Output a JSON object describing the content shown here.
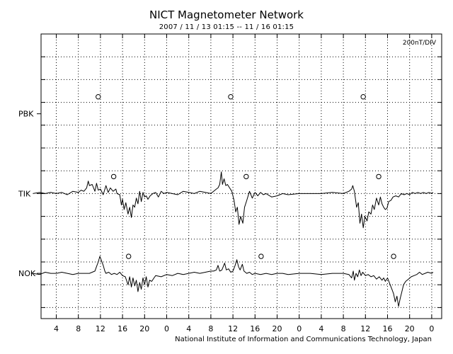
{
  "header": {
    "title": "NICT Magnetometer Network",
    "subtitle": "2007 / 11 / 13   01:15 -- 11 / 16   01:15"
  },
  "footer": {
    "credit": "National Institute of Information and Communications Technology, Japan"
  },
  "chart_data": {
    "type": "line",
    "title": "NICT Magnetometer Network",
    "subtitle": "2007 / 11 / 13   01:15 -- 11 / 16   01:15",
    "scale_label": "200nT/DIV",
    "x_tick_labels": [
      "4",
      "8",
      "12",
      "16",
      "20",
      "0",
      "4",
      "8",
      "12",
      "16",
      "20",
      "0",
      "4",
      "8",
      "12",
      "16",
      "20",
      "0"
    ],
    "grid": true,
    "colors": {
      "line": "#000000",
      "grid": "#000000",
      "background": "#ffffff"
    },
    "series": [
      {
        "name": "PBK",
        "level_div": 3.5,
        "markers_hours_ut": [
          11.6,
          35.6,
          59.6
        ],
        "points": []
      },
      {
        "name": "TIK",
        "level_div": 7,
        "markers_hours_ut": [
          14.4,
          38.4,
          62.4
        ],
        "points": [
          [
            -0.25,
            0.0
          ],
          [
            1,
            0.05
          ],
          [
            2,
            0.0
          ],
          [
            3,
            0.05
          ],
          [
            4,
            0.0
          ],
          [
            5,
            0.05
          ],
          [
            6,
            -0.05
          ],
          [
            7,
            0.1
          ],
          [
            8,
            0.05
          ],
          [
            8.5,
            0.15
          ],
          [
            9,
            0.1
          ],
          [
            9.5,
            0.25
          ],
          [
            9.8,
            0.55
          ],
          [
            10,
            0.35
          ],
          [
            10.5,
            0.4
          ],
          [
            11,
            0.1
          ],
          [
            11.3,
            0.45
          ],
          [
            11.6,
            0.15
          ],
          [
            12,
            0.2
          ],
          [
            12.5,
            -0.05
          ],
          [
            13,
            0.35
          ],
          [
            13.4,
            0.05
          ],
          [
            13.8,
            0.25
          ],
          [
            14.3,
            0.1
          ],
          [
            14.8,
            0.2
          ],
          [
            15,
            0.0
          ],
          [
            15.5,
            -0.05
          ],
          [
            15.8,
            -0.5
          ],
          [
            16,
            -0.25
          ],
          [
            16.3,
            -0.7
          ],
          [
            16.6,
            -0.4
          ],
          [
            17,
            -0.9
          ],
          [
            17.3,
            -0.6
          ],
          [
            17.6,
            -1.05
          ],
          [
            17.9,
            -0.5
          ],
          [
            18.2,
            -0.6
          ],
          [
            18.5,
            -0.2
          ],
          [
            18.8,
            -0.45
          ],
          [
            19.1,
            0.1
          ],
          [
            19.4,
            -0.35
          ],
          [
            19.7,
            0.05
          ],
          [
            20,
            -0.15
          ],
          [
            20.3,
            -0.1
          ],
          [
            20.6,
            -0.25
          ],
          [
            21,
            -0.1
          ],
          [
            21.5,
            0.0
          ],
          [
            22,
            0.05
          ],
          [
            22.5,
            -0.15
          ],
          [
            23,
            0.1
          ],
          [
            23.5,
            0.0
          ],
          [
            24,
            0.05
          ],
          [
            25,
            0.0
          ],
          [
            26,
            -0.05
          ],
          [
            27,
            0.1
          ],
          [
            28,
            0.05
          ],
          [
            29,
            0.0
          ],
          [
            30,
            0.1
          ],
          [
            31,
            0.05
          ],
          [
            32,
            0.0
          ],
          [
            33,
            0.2
          ],
          [
            33.3,
            0.25
          ],
          [
            33.6,
            0.4
          ],
          [
            33.9,
            0.95
          ],
          [
            34.1,
            0.4
          ],
          [
            34.4,
            0.65
          ],
          [
            34.7,
            0.35
          ],
          [
            35,
            0.4
          ],
          [
            35.4,
            0.25
          ],
          [
            35.8,
            0.1
          ],
          [
            36.2,
            -0.3
          ],
          [
            36.5,
            -0.8
          ],
          [
            36.8,
            -0.6
          ],
          [
            37.1,
            -1.35
          ],
          [
            37.4,
            -1.0
          ],
          [
            37.8,
            -1.3
          ],
          [
            38.1,
            -0.6
          ],
          [
            38.5,
            -0.3
          ],
          [
            39,
            0.1
          ],
          [
            39.5,
            -0.2
          ],
          [
            40,
            0.05
          ],
          [
            40.5,
            -0.1
          ],
          [
            41,
            0.05
          ],
          [
            41.5,
            -0.05
          ],
          [
            42,
            0.0
          ],
          [
            43,
            -0.15
          ],
          [
            44,
            -0.1
          ],
          [
            45,
            0.0
          ],
          [
            46,
            -0.05
          ],
          [
            48,
            0.0
          ],
          [
            50,
            0.0
          ],
          [
            52,
            0.0
          ],
          [
            54,
            0.05
          ],
          [
            56,
            0.0
          ],
          [
            57,
            0.1
          ],
          [
            57.5,
            0.2
          ],
          [
            57.7,
            0.35
          ],
          [
            58,
            0.1
          ],
          [
            58.4,
            -0.6
          ],
          [
            58.7,
            -0.4
          ],
          [
            59,
            -1.3
          ],
          [
            59.3,
            -0.9
          ],
          [
            59.6,
            -1.5
          ],
          [
            59.9,
            -1.0
          ],
          [
            60.3,
            -1.2
          ],
          [
            60.6,
            -0.8
          ],
          [
            61,
            -0.9
          ],
          [
            61.3,
            -0.5
          ],
          [
            61.6,
            -0.7
          ],
          [
            62,
            -0.2
          ],
          [
            62.4,
            -0.5
          ],
          [
            62.7,
            -0.15
          ],
          [
            63,
            -0.45
          ],
          [
            63.3,
            -0.6
          ],
          [
            63.6,
            -0.7
          ],
          [
            63.9,
            -0.65
          ],
          [
            64.2,
            -0.35
          ],
          [
            64.6,
            -0.3
          ],
          [
            65,
            -0.15
          ],
          [
            65.5,
            -0.1
          ],
          [
            66,
            -0.15
          ],
          [
            66.5,
            0.0
          ],
          [
            67,
            -0.05
          ],
          [
            67.5,
            0.0
          ],
          [
            68,
            -0.05
          ],
          [
            68.5,
            0.05
          ],
          [
            69,
            0.0
          ],
          [
            69.5,
            0.05
          ],
          [
            70,
            0.0
          ],
          [
            70.5,
            0.05
          ],
          [
            71,
            0.0
          ],
          [
            71.5,
            0.05
          ],
          [
            72,
            0.0
          ],
          [
            72.25,
            0.05
          ]
        ]
      },
      {
        "name": "NOK",
        "level_div": 10.5,
        "markers_hours_ut": [
          17.1,
          41.1,
          65.1
        ],
        "points": [
          [
            -0.25,
            0.0
          ],
          [
            1,
            -0.05
          ],
          [
            2,
            0.05
          ],
          [
            3,
            0.0
          ],
          [
            4,
            0.0
          ],
          [
            5,
            0.05
          ],
          [
            6,
            0.0
          ],
          [
            7,
            -0.05
          ],
          [
            8,
            0.0
          ],
          [
            9,
            0.0
          ],
          [
            10,
            0.0
          ],
          [
            10.5,
            0.05
          ],
          [
            11,
            0.1
          ],
          [
            11.3,
            0.3
          ],
          [
            11.6,
            0.5
          ],
          [
            11.9,
            0.75
          ],
          [
            12.2,
            0.55
          ],
          [
            12.5,
            0.35
          ],
          [
            12.8,
            0.1
          ],
          [
            13,
            0.0
          ],
          [
            13.5,
            0.05
          ],
          [
            14,
            -0.05
          ],
          [
            14.5,
            0.0
          ],
          [
            15,
            -0.05
          ],
          [
            15.5,
            0.05
          ],
          [
            16,
            -0.1
          ],
          [
            16.5,
            -0.15
          ],
          [
            17,
            -0.5
          ],
          [
            17.3,
            -0.15
          ],
          [
            17.6,
            -0.6
          ],
          [
            17.9,
            -0.2
          ],
          [
            18.2,
            -0.55
          ],
          [
            18.5,
            -0.3
          ],
          [
            18.8,
            -0.8
          ],
          [
            19.1,
            -0.4
          ],
          [
            19.4,
            -0.7
          ],
          [
            19.7,
            -0.2
          ],
          [
            20,
            -0.5
          ],
          [
            20.3,
            -0.15
          ],
          [
            20.6,
            -0.6
          ],
          [
            20.9,
            -0.3
          ],
          [
            21.3,
            -0.35
          ],
          [
            21.7,
            -0.2
          ],
          [
            22,
            -0.1
          ],
          [
            23,
            -0.15
          ],
          [
            24,
            -0.05
          ],
          [
            25,
            -0.1
          ],
          [
            26,
            0.0
          ],
          [
            27,
            -0.05
          ],
          [
            28,
            0.0
          ],
          [
            29,
            0.05
          ],
          [
            30,
            0.0
          ],
          [
            31,
            0.05
          ],
          [
            32,
            0.1
          ],
          [
            32.5,
            0.1
          ],
          [
            33,
            0.15
          ],
          [
            33.3,
            0.35
          ],
          [
            33.6,
            0.1
          ],
          [
            34,
            0.15
          ],
          [
            34.5,
            0.45
          ],
          [
            34.8,
            0.15
          ],
          [
            35.2,
            0.2
          ],
          [
            35.6,
            0.05
          ],
          [
            36,
            0.1
          ],
          [
            36.4,
            0.35
          ],
          [
            36.7,
            0.6
          ],
          [
            37,
            0.3
          ],
          [
            37.3,
            0.15
          ],
          [
            37.7,
            0.4
          ],
          [
            38,
            0.1
          ],
          [
            38.5,
            0.0
          ],
          [
            39,
            0.05
          ],
          [
            39.5,
            -0.05
          ],
          [
            40,
            0.0
          ],
          [
            41,
            -0.05
          ],
          [
            42,
            0.0
          ],
          [
            43,
            -0.05
          ],
          [
            44,
            0.0
          ],
          [
            45,
            0.0
          ],
          [
            46,
            -0.05
          ],
          [
            48,
            0.0
          ],
          [
            50,
            0.0
          ],
          [
            52,
            -0.05
          ],
          [
            54,
            0.0
          ],
          [
            56,
            0.0
          ],
          [
            57,
            -0.05
          ],
          [
            57.5,
            -0.2
          ],
          [
            57.8,
            0.1
          ],
          [
            58,
            -0.3
          ],
          [
            58.3,
            0.0
          ],
          [
            58.6,
            -0.15
          ],
          [
            58.9,
            0.15
          ],
          [
            59.2,
            -0.1
          ],
          [
            59.5,
            0.05
          ],
          [
            60,
            -0.1
          ],
          [
            60.5,
            -0.05
          ],
          [
            61,
            -0.15
          ],
          [
            61.5,
            -0.1
          ],
          [
            62,
            -0.25
          ],
          [
            62.5,
            -0.15
          ],
          [
            63,
            -0.3
          ],
          [
            63.3,
            -0.2
          ],
          [
            63.6,
            -0.35
          ],
          [
            64,
            -0.2
          ],
          [
            64.4,
            -0.45
          ],
          [
            64.8,
            -0.7
          ],
          [
            65.1,
            -0.9
          ],
          [
            65.4,
            -1.25
          ],
          [
            65.7,
            -1.0
          ],
          [
            66,
            -1.45
          ],
          [
            66.3,
            -1.1
          ],
          [
            66.6,
            -0.8
          ],
          [
            66.9,
            -0.5
          ],
          [
            67.3,
            -0.35
          ],
          [
            67.8,
            -0.25
          ],
          [
            68.3,
            -0.15
          ],
          [
            68.8,
            -0.1
          ],
          [
            69.3,
            -0.05
          ],
          [
            69.8,
            0.05
          ],
          [
            70.3,
            -0.05
          ],
          [
            70.8,
            0.0
          ],
          [
            71.3,
            0.05
          ],
          [
            72,
            0.0
          ],
          [
            72.25,
            0.05
          ]
        ]
      }
    ]
  }
}
